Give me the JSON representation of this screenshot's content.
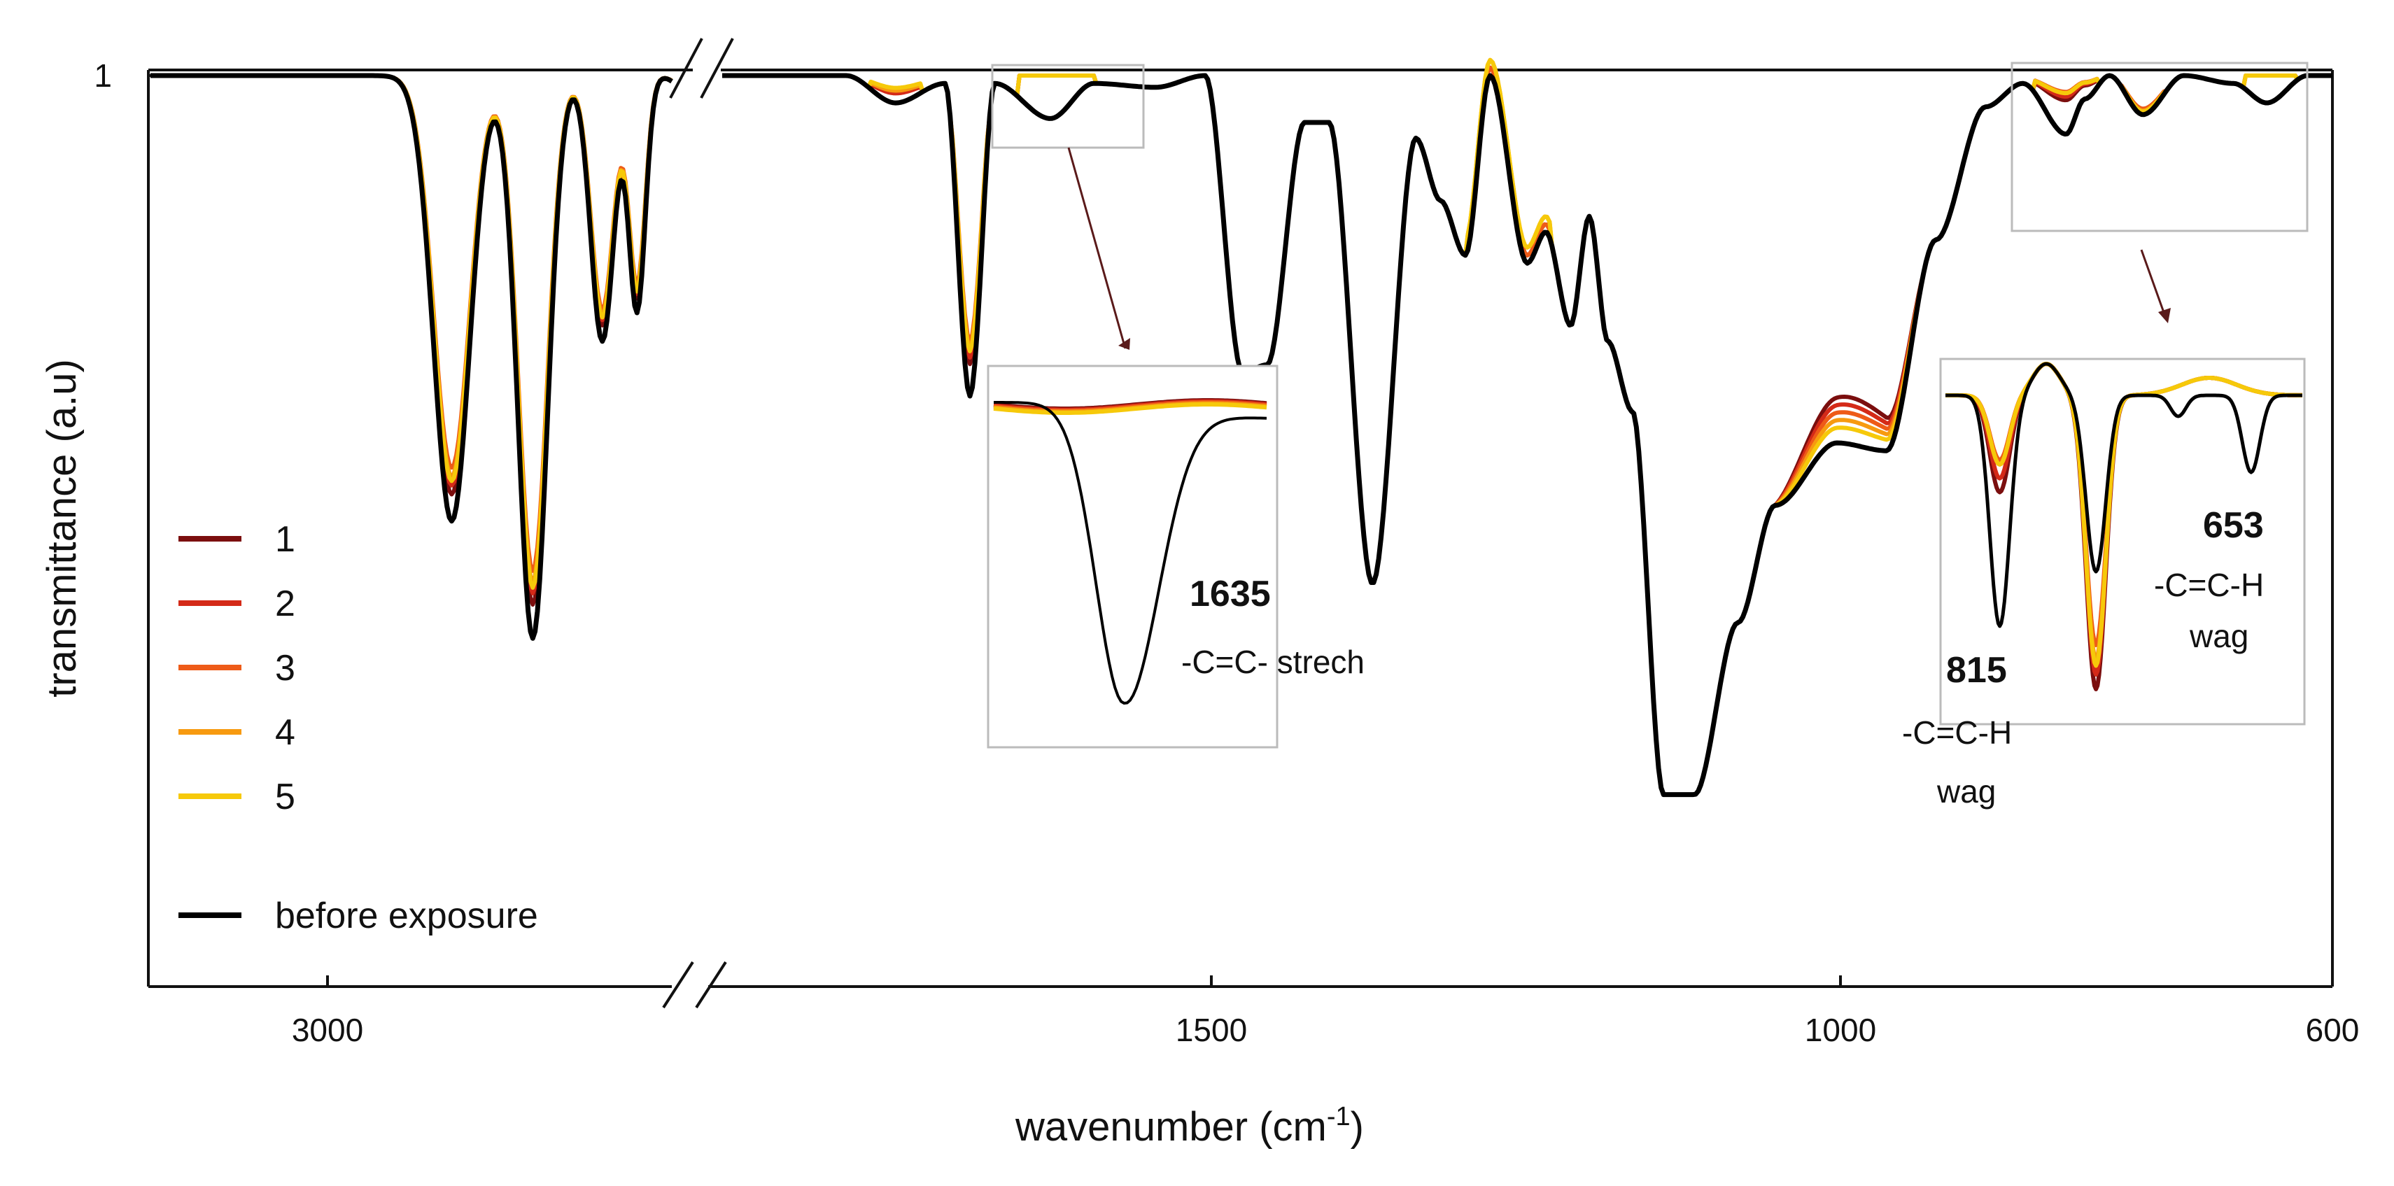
{
  "chart_data": {
    "type": "line",
    "xlabel": "wavenumber (cm",
    "xlabel_sup": "-1",
    "xlabel_close": ")",
    "ylabel": "transmittance (a.u)",
    "y_tick_label": "1",
    "x_ticks": [
      "3000",
      "1500",
      "1000",
      "600"
    ],
    "x_axis_note": "broken axis between about 2750 and 1900 cm-1",
    "legend_position": "left",
    "grid": false,
    "series": [
      {
        "name": "1",
        "color": "#7b0e0e"
      },
      {
        "name": "2",
        "color": "#d42a18"
      },
      {
        "name": "3",
        "color": "#ee5b18"
      },
      {
        "name": "4",
        "color": "#f79a10"
      },
      {
        "name": "5",
        "color": "#f6c90a"
      },
      {
        "name": "before exposure",
        "color": "#000000"
      }
    ],
    "segment_high": {
      "x_from": 3200,
      "x_to": 2750,
      "baseline": 1.0,
      "bands": [
        {
          "x": 2940,
          "depth": 0.57
        },
        {
          "x": 2870,
          "depth": 0.72
        },
        {
          "x": 2810,
          "depth": 0.34
        },
        {
          "x": 2780,
          "depth": 0.3
        },
        {
          "x": 2720,
          "depth": 0.07
        }
      ],
      "band_scale_by_series": [
        0.94,
        0.92,
        0.88,
        0.9,
        0.91,
        1.0
      ]
    },
    "segment_low": {
      "x_from": 1900,
      "x_to": 600,
      "baseline": 1.0,
      "y_min": 0.0,
      "points_before_exposure": [
        [
          1900,
          1.0
        ],
        [
          1800,
          1.0
        ],
        [
          1760,
          0.965
        ],
        [
          1720,
          0.99
        ],
        [
          1700,
          0.59
        ],
        [
          1680,
          0.99
        ],
        [
          1635,
          0.945
        ],
        [
          1600,
          0.99
        ],
        [
          1550,
          0.985
        ],
        [
          1510,
          1.0
        ],
        [
          1480,
          0.62
        ],
        [
          1460,
          0.63
        ],
        [
          1430,
          0.94
        ],
        [
          1410,
          0.94
        ],
        [
          1375,
          0.35
        ],
        [
          1340,
          0.92
        ],
        [
          1320,
          0.84
        ],
        [
          1300,
          0.77
        ],
        [
          1280,
          1.0
        ],
        [
          1250,
          0.76
        ],
        [
          1235,
          0.8
        ],
        [
          1215,
          0.68
        ],
        [
          1200,
          0.82
        ],
        [
          1185,
          0.66
        ],
        [
          1165,
          0.57
        ],
        [
          1140,
          0.08
        ],
        [
          1115,
          0.08
        ],
        [
          1080,
          0.3
        ],
        [
          1050,
          0.45
        ],
        [
          1000,
          0.53
        ],
        [
          960,
          0.52
        ],
        [
          920,
          0.79
        ],
        [
          880,
          0.96
        ],
        [
          850,
          0.99
        ],
        [
          815,
          0.925
        ],
        [
          800,
          0.97
        ],
        [
          780,
          1.0
        ],
        [
          753,
          0.95
        ],
        [
          720,
          1.0
        ],
        [
          680,
          0.99
        ],
        [
          653,
          0.965
        ],
        [
          620,
          1.0
        ],
        [
          600,
          1.0
        ]
      ],
      "exposed_band_scale": {
        "1635": [
          0.0,
          0.0,
          0.0,
          0.0,
          0.0
        ],
        "815": [
          0.42,
          0.36,
          0.28,
          0.3,
          0.3
        ],
        "753": [
          1.0,
          0.95,
          0.85,
          0.9,
          0.92
        ],
        "653": [
          0.0,
          0.0,
          0.0,
          0.0,
          0.0
        ],
        "1700": [
          0.9,
          0.88,
          0.83,
          0.85,
          0.86
        ],
        "1760": [
          0.6,
          0.65,
          0.5,
          0.55,
          0.45
        ]
      }
    },
    "annotations": [
      {
        "id": "a1635",
        "number": "1635",
        "text": "-C=C- strech"
      },
      {
        "id": "a815",
        "number": "815",
        "line1": "-C=C-H",
        "line2": "wag"
      },
      {
        "id": "a653",
        "number": "653",
        "line1": "-C=C-H",
        "line2": "wag"
      }
    ]
  }
}
